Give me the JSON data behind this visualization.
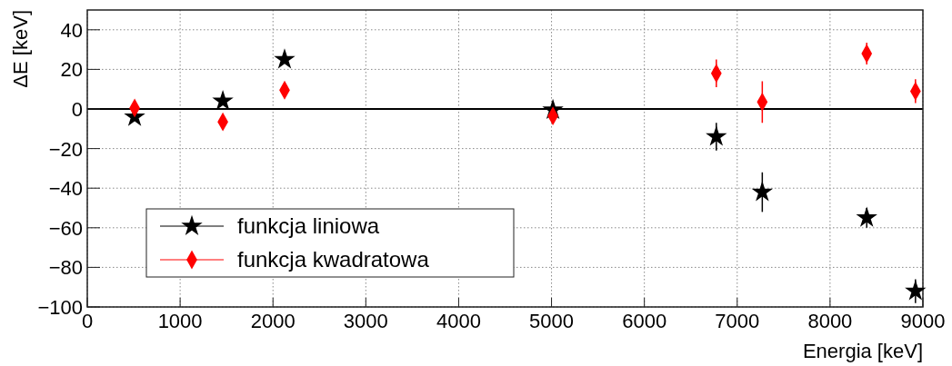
{
  "chart_data": {
    "type": "scatter",
    "xlabel": "Energia [keV]",
    "ylabel": "ΔE [keV]",
    "xlim": [
      0,
      9000
    ],
    "xticks": [
      0,
      1000,
      2000,
      3000,
      4000,
      5000,
      6000,
      7000,
      8000,
      9000
    ],
    "ylim": [
      -100,
      50
    ],
    "yticks": [
      -100,
      -80,
      -60,
      -40,
      -20,
      0,
      20,
      40
    ],
    "grid": true,
    "legend": "bottom left",
    "ref_lines": [
      {
        "axis": "y",
        "value": 0,
        "color": "#000000"
      }
    ],
    "series": [
      {
        "name": "funkcja liniowa",
        "color": "#000000",
        "marker": "star",
        "x": [
          510,
          1460,
          2125,
          5015,
          6775,
          7270,
          8395,
          8920
        ],
        "values": [
          -4,
          4,
          25,
          -0.5,
          -14,
          -42,
          -55,
          -92
        ],
        "errors": [
          null,
          null,
          null,
          null,
          7,
          10,
          5,
          6
        ]
      },
      {
        "name": "funkcja kwadratowa",
        "color": "#ff0000",
        "marker": "diamond",
        "x": [
          510,
          1460,
          2125,
          5015,
          6775,
          7270,
          8395,
          8920
        ],
        "values": [
          0.5,
          -6.5,
          9.5,
          -3.5,
          18,
          3.5,
          28,
          9
        ],
        "errors": [
          null,
          null,
          null,
          null,
          7,
          10.5,
          5.5,
          6
        ]
      }
    ]
  }
}
